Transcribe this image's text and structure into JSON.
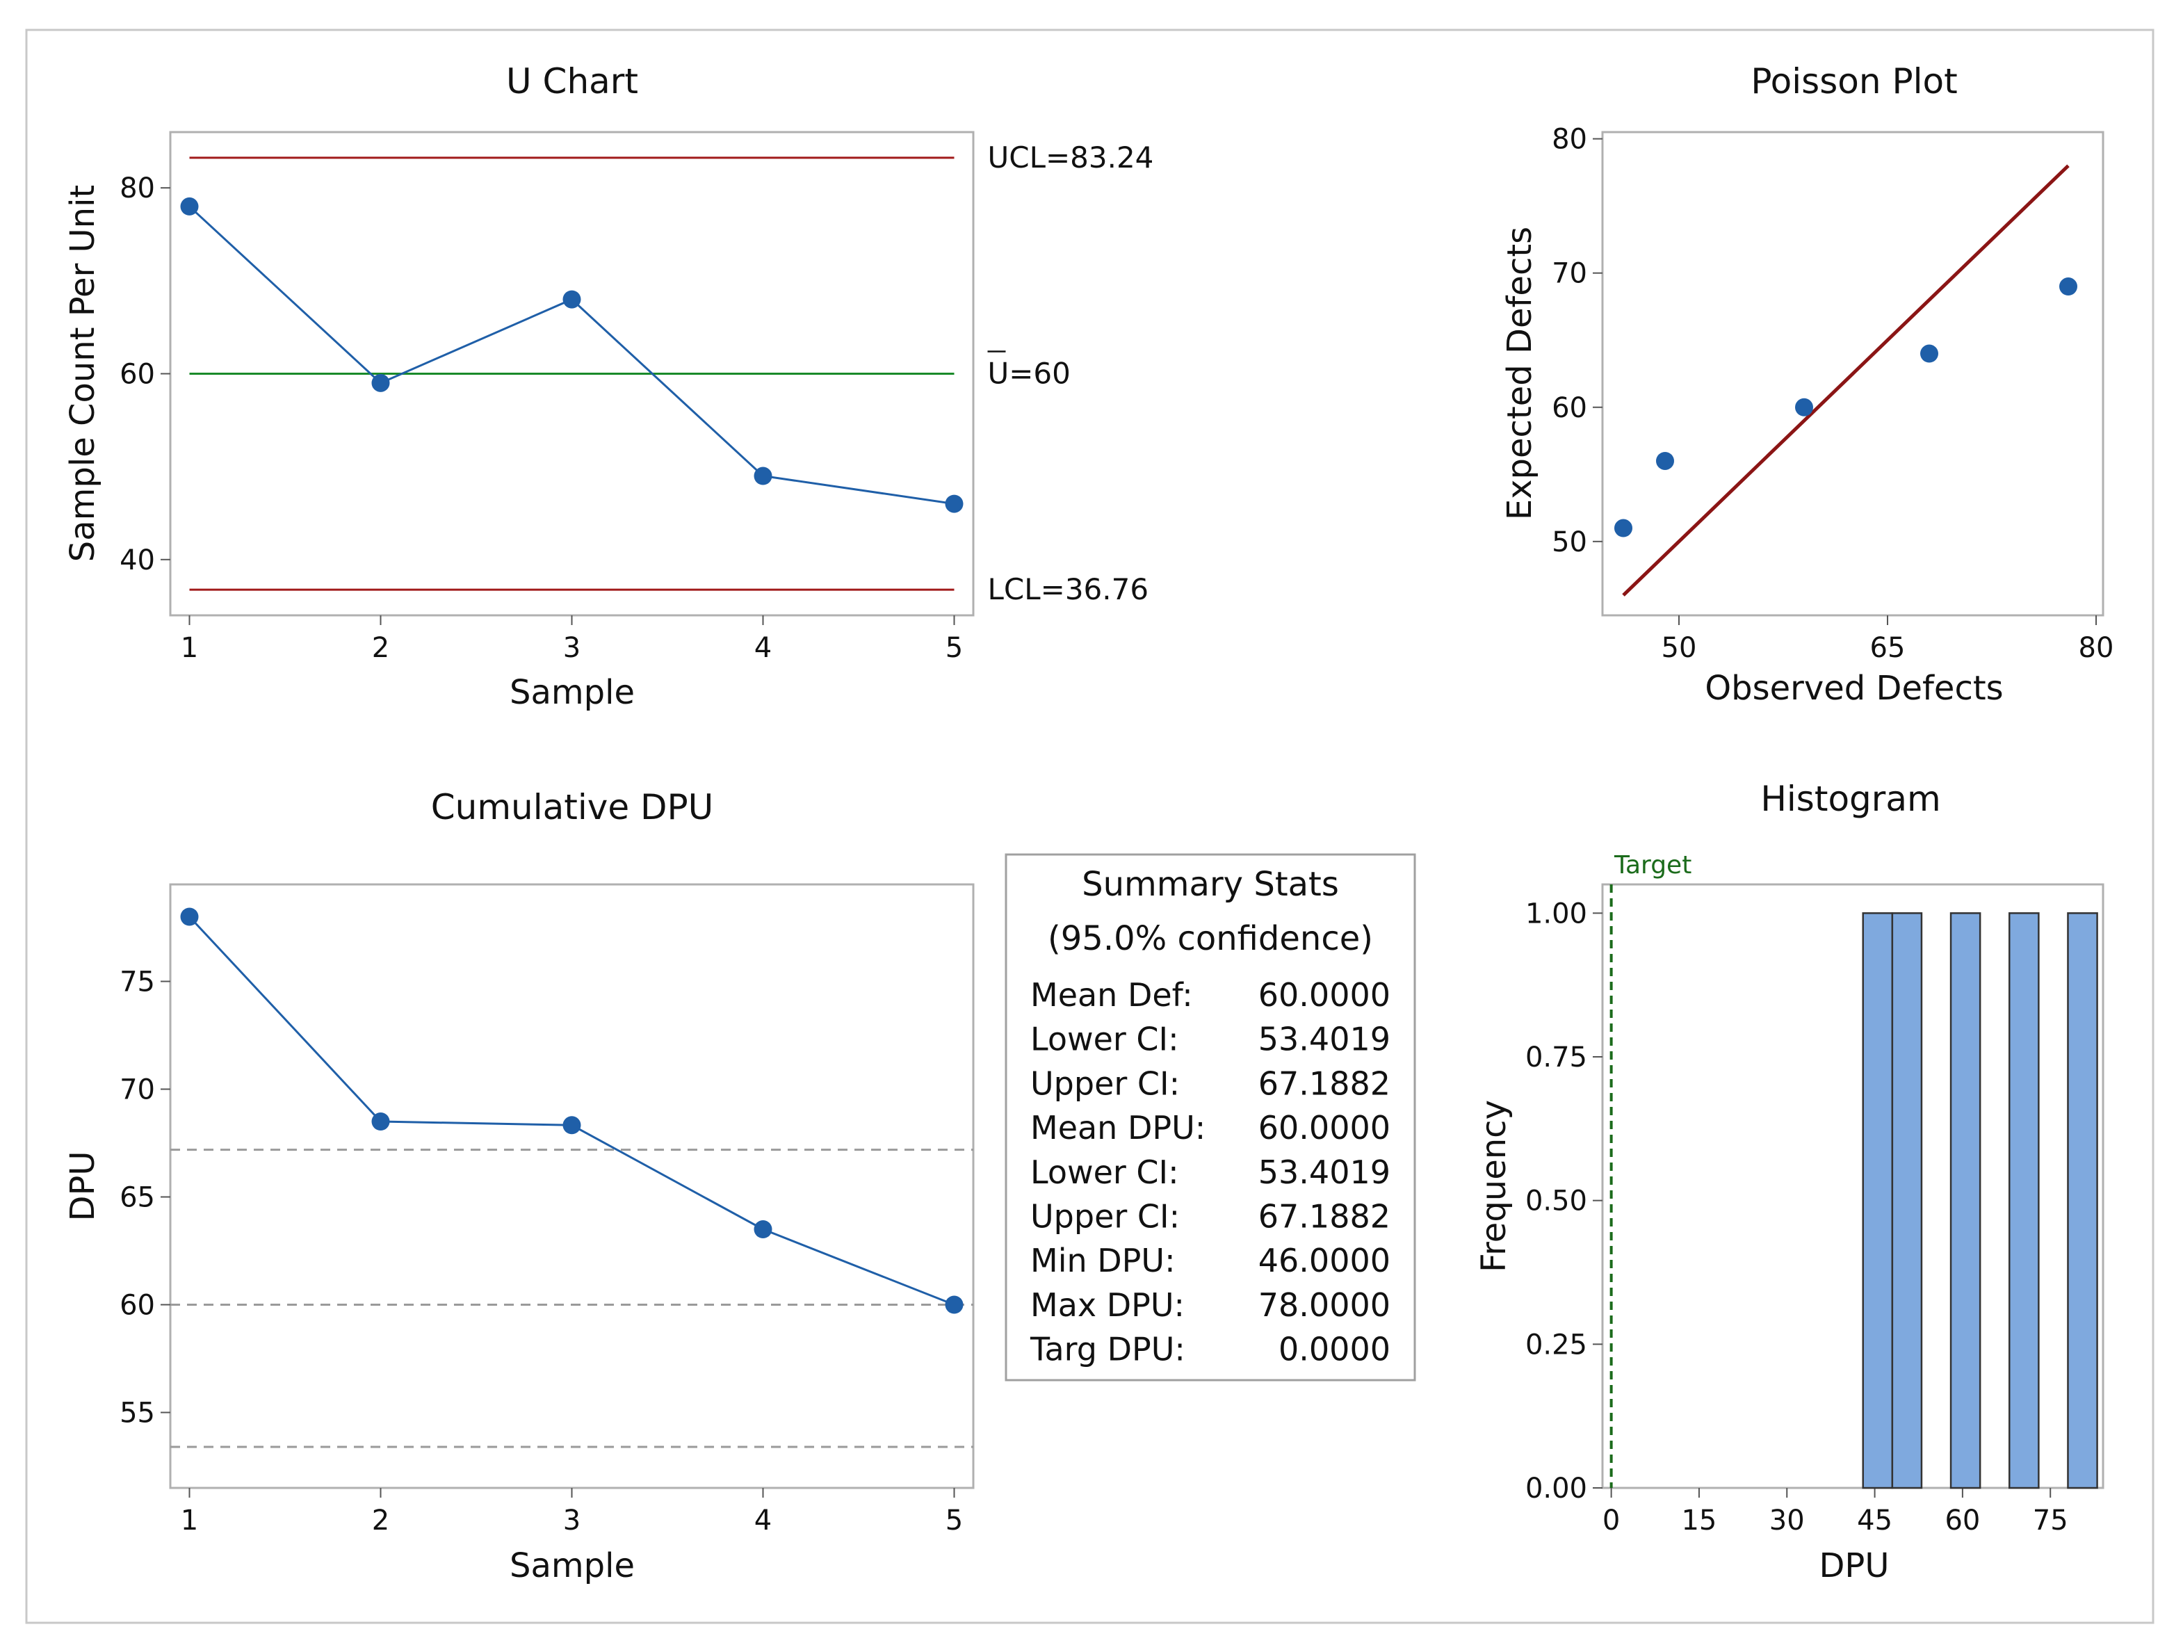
{
  "colors": {
    "accent": "#1f5fa8",
    "limit": "#a11a1a",
    "center": "#1a8a2a",
    "fit": "#8b1515",
    "bar_fill": "#7fa9de",
    "target": "#1b6b1b",
    "ref_dash": "#9a9a9a"
  },
  "chart_data": [
    {
      "id": "u_chart",
      "type": "line",
      "title": "U Chart",
      "xlabel": "Sample",
      "ylabel": "Sample Count Per Unit",
      "x": [
        1,
        2,
        3,
        4,
        5
      ],
      "values": [
        78,
        59,
        68,
        49,
        46
      ],
      "xlim": [
        0.9,
        5.1
      ],
      "ylim": [
        34,
        86
      ],
      "yticks": [
        40,
        60,
        80
      ],
      "xticks": [
        1,
        2,
        3,
        4,
        5
      ],
      "limits": [
        {
          "name": "UCL",
          "value": 83.24,
          "label": "UCL=83.24"
        },
        {
          "name": "center",
          "value": 60,
          "label": "U=60"
        },
        {
          "name": "LCL",
          "value": 36.76,
          "label": "LCL=36.76"
        }
      ]
    },
    {
      "id": "poisson_plot",
      "type": "scatter",
      "title": "Poisson Plot",
      "xlabel": "Observed Defects",
      "ylabel": "Expected Defects",
      "points": [
        {
          "x": 46,
          "y": 51
        },
        {
          "x": 49,
          "y": 56
        },
        {
          "x": 59,
          "y": 60
        },
        {
          "x": 68,
          "y": 64
        },
        {
          "x": 78,
          "y": 69
        }
      ],
      "fit_line": [
        {
          "x": 46,
          "y": 46
        },
        {
          "x": 78,
          "y": 78
        }
      ],
      "xlim": [
        44.5,
        80.5
      ],
      "ylim": [
        44.5,
        80.5
      ],
      "xticks": [
        50,
        65,
        80
      ],
      "yticks": [
        50,
        60,
        70,
        80
      ]
    },
    {
      "id": "cumulative_dpu",
      "type": "line",
      "title": "Cumulative DPU",
      "xlabel": "Sample",
      "ylabel": "DPU",
      "x": [
        1,
        2,
        3,
        4,
        5
      ],
      "values": [
        78,
        68.5,
        68.33,
        63.5,
        60
      ],
      "xlim": [
        0.9,
        5.1
      ],
      "ylim": [
        51.5,
        79.5
      ],
      "yticks": [
        55,
        60,
        65,
        70,
        75
      ],
      "xticks": [
        1,
        2,
        3,
        4,
        5
      ],
      "reference_lines": [
        67.1882,
        60,
        53.4019
      ]
    },
    {
      "id": "histogram",
      "type": "bar",
      "title": "Histogram",
      "xlabel": "DPU",
      "ylabel": "Frequency",
      "bins": [
        {
          "start": 43,
          "end": 48,
          "value": 1
        },
        {
          "start": 48,
          "end": 53,
          "value": 1
        },
        {
          "start": 58,
          "end": 63,
          "value": 1
        },
        {
          "start": 68,
          "end": 73,
          "value": 1
        },
        {
          "start": 78,
          "end": 83,
          "value": 1
        }
      ],
      "xlim": [
        -1.5,
        84
      ],
      "ylim": [
        0,
        1.05
      ],
      "xticks": [
        0,
        15,
        30,
        45,
        60,
        75
      ],
      "yticks": [
        0,
        0.25,
        0.5,
        0.75,
        1.0
      ],
      "target": {
        "value": 0,
        "label": "Target"
      }
    }
  ],
  "summary": {
    "title": "Summary Stats",
    "subtitle": "(95.0% confidence)",
    "rows": [
      {
        "label": "Mean Def:",
        "value": "60.0000"
      },
      {
        "label": "Lower CI:",
        "value": "53.4019"
      },
      {
        "label": "Upper CI:",
        "value": "67.1882"
      },
      {
        "label": "Mean DPU:",
        "value": "60.0000"
      },
      {
        "label": "Lower CI:",
        "value": "53.4019"
      },
      {
        "label": "Upper CI:",
        "value": "67.1882"
      },
      {
        "label": "Min DPU:",
        "value": "46.0000"
      },
      {
        "label": "Max DPU:",
        "value": "78.0000"
      },
      {
        "label": "Targ DPU:",
        "value": "0.0000"
      }
    ]
  }
}
